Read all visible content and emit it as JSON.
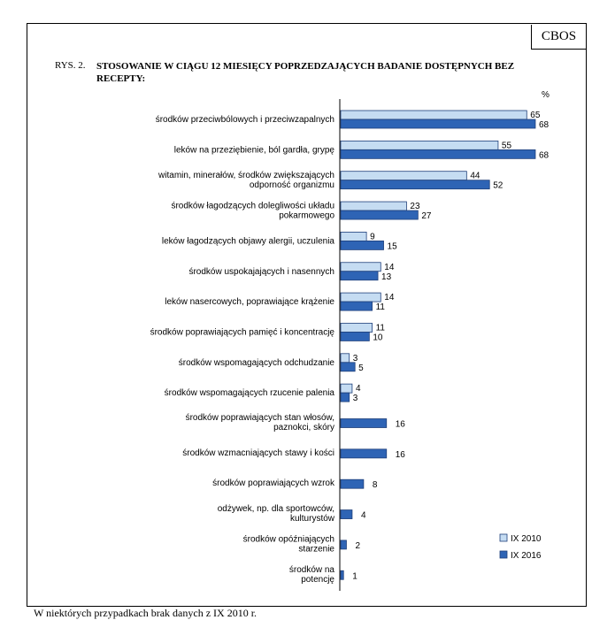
{
  "badge": "CBOS",
  "figure_label": "RYS. 2.",
  "unit": "%",
  "footnote": "W niektórych przypadkach brak danych z IX 2010 r.",
  "colors": {
    "ix2010": "#c5dcf2",
    "ix2016": "#2e64b5",
    "stroke": "#1e3f7a"
  },
  "chart_data": {
    "type": "bar",
    "orientation": "horizontal",
    "title": "STOSOWANIE W CIĄGU 12 MIESIĘCY POPRZEDZAJĄCYCH BADANIE DOSTĘPNYCH BEZ RECEPTY:",
    "categories": [
      "środków przeciwbólowych i przeciwzapalnych",
      "leków na przeziębienie, ból gardła, grypę",
      "witamin, minerałów, środków zwiększających odporność organizmu",
      "środków łagodzących dolegliwości układu pokarmowego",
      "leków łagodzących objawy alergii, uczulenia",
      "środków uspokajających i nasennych",
      "leków nasercowych, poprawiające krążenie",
      "środków poprawiających pamięć i koncentrację",
      "środków wspomagających odchudzanie",
      "środków wspomagających rzucenie palenia",
      "środków poprawiających stan włosów, paznokci, skóry",
      "środków wzmacniających stawy i kości",
      "środków poprawiających wzrok",
      "odżywek, np. dla sportowców, kulturystów",
      "środków opóźniających starzenie",
      "środków na potencję"
    ],
    "category_lines": [
      [
        "środków przeciwbólowych i przeciwzapalnych"
      ],
      [
        "leków na przeziębienie, ból gardła, grypę"
      ],
      [
        "witamin, minerałów, środków zwiększających",
        "odporność organizmu"
      ],
      [
        "środków łagodzących dolegliwości układu",
        "pokarmowego"
      ],
      [
        "leków łagodzących objawy alergii, uczulenia"
      ],
      [
        "środków uspokajających i nasennych"
      ],
      [
        "leków nasercowych, poprawiające krążenie"
      ],
      [
        "środków poprawiających pamięć i koncentrację"
      ],
      [
        "środków wspomagających odchudzanie"
      ],
      [
        "środków wspomagających rzucenie palenia"
      ],
      [
        "środków poprawiających stan włosów,",
        "paznokci, skóry"
      ],
      [
        "środków wzmacniających stawy i kości"
      ],
      [
        "środków poprawiających wzrok"
      ],
      [
        "odżywek, np. dla sportowców,",
        "kulturystów"
      ],
      [
        "środków opóźniających",
        "starzenie"
      ],
      [
        "środków na",
        "potencję"
      ]
    ],
    "series": [
      {
        "name": "IX 2010",
        "values": [
          65,
          55,
          44,
          23,
          9,
          14,
          14,
          11,
          3,
          4,
          null,
          null,
          null,
          null,
          null,
          null
        ]
      },
      {
        "name": "IX 2016",
        "values": [
          68,
          68,
          52,
          27,
          15,
          13,
          11,
          10,
          5,
          3,
          16,
          16,
          8,
          4,
          2,
          1
        ]
      }
    ],
    "xlim": [
      0,
      68
    ],
    "grid": false,
    "legend_position": "bottom-right"
  }
}
